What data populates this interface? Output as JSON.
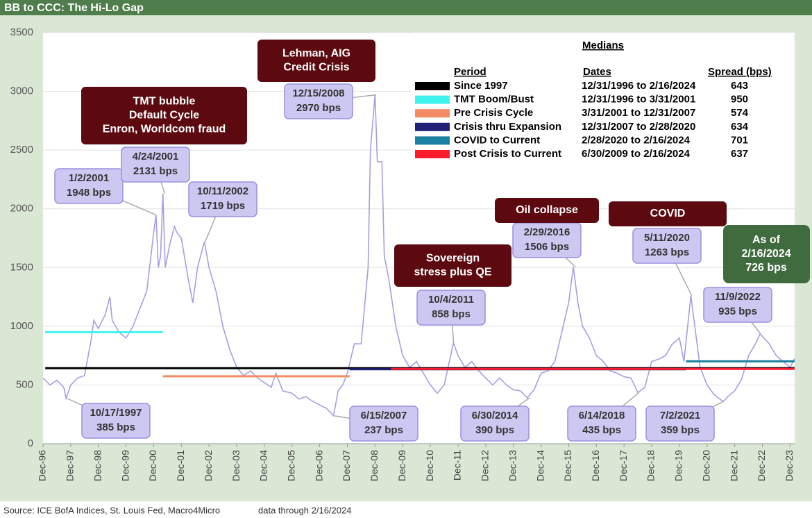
{
  "chart_data": {
    "type": "line",
    "title": "BB to CCC: The Hi-Lo Gap",
    "source": "Source: ICE BofA Indices, St. Louis Fed, Macro4Micro",
    "note": "data through 2/16/2024",
    "color": "#a89de2",
    "grid": true,
    "ylim": [
      0,
      3500
    ],
    "yticks": [
      0,
      500,
      1000,
      1500,
      2000,
      2500,
      3000,
      3500
    ],
    "xlim": [
      "1996-12",
      "2024-02"
    ],
    "xticks": [
      {
        "value": "1996-12",
        "label": "Dec-96"
      },
      {
        "value": "1997-12",
        "label": "Dec-97"
      },
      {
        "value": "1998-12",
        "label": "Dec-98"
      },
      {
        "value": "1999-12",
        "label": "Dec-99"
      },
      {
        "value": "2000-12",
        "label": "Dec-00"
      },
      {
        "value": "2001-12",
        "label": "Dec-01"
      },
      {
        "value": "2002-12",
        "label": "Dec-02"
      },
      {
        "value": "2003-12",
        "label": "Dec-03"
      },
      {
        "value": "2004-12",
        "label": "Dec-04"
      },
      {
        "value": "2005-12",
        "label": "Dec-05"
      },
      {
        "value": "2006-12",
        "label": "Dec-06"
      },
      {
        "value": "2007-12",
        "label": "Dec-07"
      },
      {
        "value": "2008-12",
        "label": "Dec-08"
      },
      {
        "value": "2009-12",
        "label": "Dec-09"
      },
      {
        "value": "2010-12",
        "label": "Dec-10"
      },
      {
        "value": "2011-12",
        "label": "Dec-11"
      },
      {
        "value": "2012-12",
        "label": "Dec-12"
      },
      {
        "value": "2013-12",
        "label": "Dec-13"
      },
      {
        "value": "2014-12",
        "label": "Dec-14"
      },
      {
        "value": "2015-12",
        "label": "Dec-15"
      },
      {
        "value": "2016-12",
        "label": "Dec-16"
      },
      {
        "value": "2017-12",
        "label": "Dec-17"
      },
      {
        "value": "2018-12",
        "label": "Dec-18"
      },
      {
        "value": "2019-12",
        "label": "Dec-19"
      },
      {
        "value": "2020-12",
        "label": "Dec-20"
      },
      {
        "value": "2021-12",
        "label": "Dec-21"
      },
      {
        "value": "2022-12",
        "label": "Dec-22"
      },
      {
        "value": "2023-12",
        "label": "Dec-23"
      }
    ],
    "x": [
      "1996-12",
      "1997-03",
      "1997-06",
      "1997-09",
      "1997-10",
      "1997-12",
      "1998-03",
      "1998-06",
      "1998-09",
      "1998-10",
      "1998-12",
      "1999-03",
      "1999-05",
      "1999-06",
      "1999-09",
      "1999-12",
      "2000-03",
      "2000-06",
      "2000-09",
      "2000-12",
      "2001-01",
      "2001-02",
      "2001-03",
      "2001-04",
      "2001-05",
      "2001-07",
      "2001-09",
      "2001-10",
      "2001-12",
      "2002-03",
      "2002-05",
      "2002-07",
      "2002-10",
      "2002-12",
      "2003-03",
      "2003-06",
      "2003-09",
      "2003-12",
      "2004-03",
      "2004-06",
      "2004-09",
      "2004-12",
      "2005-03",
      "2005-05",
      "2005-08",
      "2005-12",
      "2006-03",
      "2006-06",
      "2006-09",
      "2006-12",
      "2007-03",
      "2007-06",
      "2007-08",
      "2007-10",
      "2007-12",
      "2008-03",
      "2008-06",
      "2008-09",
      "2008-10",
      "2008-12",
      "2009-01",
      "2009-03",
      "2009-04",
      "2009-06",
      "2009-09",
      "2009-12",
      "2010-03",
      "2010-06",
      "2010-09",
      "2010-12",
      "2011-03",
      "2011-06",
      "2011-10",
      "2011-12",
      "2012-03",
      "2012-06",
      "2012-09",
      "2012-12",
      "2013-03",
      "2013-06",
      "2013-09",
      "2013-12",
      "2014-03",
      "2014-06",
      "2014-09",
      "2014-12",
      "2015-03",
      "2015-06",
      "2015-09",
      "2015-12",
      "2016-02",
      "2016-04",
      "2016-06",
      "2016-09",
      "2016-12",
      "2017-03",
      "2017-06",
      "2017-09",
      "2017-12",
      "2018-03",
      "2018-06",
      "2018-09",
      "2018-12",
      "2019-03",
      "2019-06",
      "2019-09",
      "2019-12",
      "2020-02",
      "2020-05",
      "2020-07",
      "2020-09",
      "2020-12",
      "2021-03",
      "2021-07",
      "2021-09",
      "2021-12",
      "2022-03",
      "2022-06",
      "2022-09",
      "2022-11",
      "2023-03",
      "2023-06",
      "2023-09",
      "2023-12",
      "2024-02"
    ],
    "values": [
      560,
      500,
      540,
      480,
      385,
      500,
      560,
      580,
      900,
      1050,
      980,
      1100,
      1250,
      1050,
      950,
      900,
      1000,
      1150,
      1300,
      1800,
      1948,
      1500,
      1600,
      2131,
      1500,
      1700,
      1850,
      1800,
      1750,
      1400,
      1200,
      1500,
      1719,
      1500,
      1300,
      1000,
      800,
      650,
      580,
      620,
      560,
      520,
      480,
      600,
      450,
      430,
      380,
      400,
      360,
      330,
      300,
      237,
      450,
      500,
      600,
      850,
      850,
      1500,
      2500,
      2970,
      2400,
      2400,
      1600,
      1400,
      1000,
      750,
      650,
      700,
      600,
      500,
      430,
      500,
      858,
      750,
      650,
      700,
      620,
      560,
      500,
      560,
      500,
      460,
      450,
      390,
      460,
      600,
      620,
      700,
      950,
      1200,
      1506,
      1200,
      1000,
      900,
      750,
      700,
      620,
      600,
      570,
      560,
      435,
      480,
      700,
      720,
      750,
      850,
      900,
      700,
      1263,
      950,
      650,
      500,
      420,
      359,
      400,
      450,
      550,
      750,
      850,
      935,
      850,
      750,
      700,
      650,
      726
    ],
    "annotations": [
      {
        "date": "1/2/2001",
        "value": 1948,
        "label": "1948 bps"
      },
      {
        "date": "4/24/2001",
        "value": 2131,
        "label": "2131 bps"
      },
      {
        "date": "10/11/2002",
        "value": 1719,
        "label": "1719 bps"
      },
      {
        "date": "12/15/2008",
        "value": 2970,
        "label": "2970 bps"
      },
      {
        "date": "10/4/2011",
        "value": 858,
        "label": "858 bps"
      },
      {
        "date": "2/29/2016",
        "value": 1506,
        "label": "1506 bps"
      },
      {
        "date": "5/11/2020",
        "value": 1263,
        "label": "1263 bps"
      },
      {
        "date": "11/9/2022",
        "value": 935,
        "label": "935 bps"
      },
      {
        "date": "10/17/1997",
        "value": 385,
        "label": "385 bps"
      },
      {
        "date": "6/15/2007",
        "value": 237,
        "label": "237 bps"
      },
      {
        "date": "6/30/2014",
        "value": 390,
        "label": "390 bps"
      },
      {
        "date": "6/14/2018",
        "value": 435,
        "label": "435 bps"
      },
      {
        "date": "7/2/2021",
        "value": 359,
        "label": "359 bps"
      }
    ],
    "events": [
      {
        "lines": [
          "Lehman, AIG",
          "Credit Crisis"
        ]
      },
      {
        "lines": [
          "TMT bubble",
          "Default Cycle",
          "Enron, Worldcom fraud"
        ]
      },
      {
        "lines": [
          "Sovereign",
          "stress plus QE"
        ]
      },
      {
        "lines": [
          "Oil collapse"
        ]
      },
      {
        "lines": [
          "COVID"
        ]
      }
    ],
    "as_of": [
      "As of",
      "2/16/2024",
      "726 bps"
    ],
    "medians": {
      "title": "Medians",
      "headers": [
        "Period",
        "Dates",
        "Spread (bps)"
      ],
      "rows": [
        {
          "name": "Since 1997",
          "color": "#000000",
          "dates": "12/31/1996 to 2/16/2024",
          "value": 643
        },
        {
          "name": "TMT Boom/Bust",
          "color": "#40f2ee",
          "dates": "12/31/1996 to 3/31/2001",
          "value": 950
        },
        {
          "name": "Pre Crisis Cycle",
          "color": "#f58b62",
          "dates": "3/31/2001 to 12/31/2007",
          "value": 574
        },
        {
          "name": "Crisis thru Expansion",
          "color": "#20207a",
          "dates": "12/31/2007 to 2/28/2020",
          "value": 634
        },
        {
          "name": "COVID to Current",
          "color": "#1a7fa0",
          "dates": "2/28/2020 to 2/16/2024",
          "value": 701
        },
        {
          "name": "Post Crisis to Current",
          "color": "#ff1a2e",
          "dates": "6/30/2009 to 2/16/2024",
          "value": 637
        }
      ]
    }
  }
}
